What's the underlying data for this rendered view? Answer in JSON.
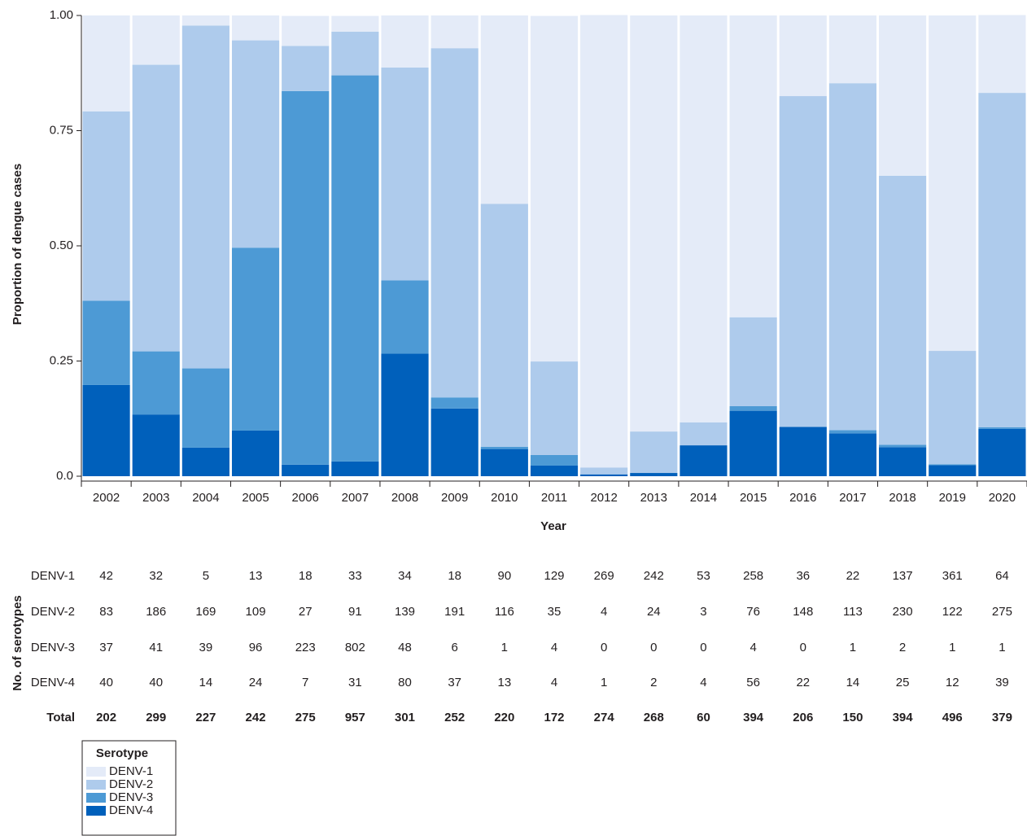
{
  "chart_data": {
    "type": "stacked_bar",
    "ylabel": "Proportion of dengue cases",
    "xlabel": "Year",
    "categories": [
      "2002",
      "2003",
      "2004",
      "2005",
      "2006",
      "2007",
      "2008",
      "2009",
      "2010",
      "2011",
      "2012",
      "2013",
      "2014",
      "2015",
      "2016",
      "2017",
      "2018",
      "2019",
      "2020"
    ],
    "series": [
      {
        "name": "DENV-1",
        "color": "#e4ebf8",
        "values": [
          0.208,
          0.107,
          0.022,
          0.054,
          0.065,
          0.034,
          0.113,
          0.071,
          0.409,
          0.75,
          0.982,
          0.903,
          0.883,
          0.655,
          0.175,
          0.147,
          0.348,
          0.728,
          0.169
        ]
      },
      {
        "name": "DENV-2",
        "color": "#aecbec",
        "values": [
          0.411,
          0.622,
          0.744,
          0.45,
          0.098,
          0.095,
          0.462,
          0.758,
          0.527,
          0.203,
          0.015,
          0.09,
          0.05,
          0.193,
          0.718,
          0.753,
          0.584,
          0.246,
          0.726
        ]
      },
      {
        "name": "DENV-3",
        "color": "#4d9ad5",
        "values": [
          0.183,
          0.137,
          0.172,
          0.397,
          0.811,
          0.838,
          0.159,
          0.024,
          0.005,
          0.023,
          0,
          0,
          0,
          0.01,
          0,
          0.007,
          0.005,
          0.002,
          0.003
        ]
      },
      {
        "name": "DENV-4",
        "color": "#0060bb",
        "values": [
          0.198,
          0.134,
          0.062,
          0.099,
          0.025,
          0.032,
          0.266,
          0.147,
          0.059,
          0.023,
          0.004,
          0.007,
          0.067,
          0.142,
          0.107,
          0.093,
          0.063,
          0.024,
          0.103
        ]
      }
    ],
    "stack_order": "bottom-up from last series",
    "ylim": [
      0,
      1
    ],
    "yticks": [
      {
        "value": 0,
        "label": "0.0"
      },
      0.25,
      {
        "value": 0.5,
        "label": "0.50"
      },
      0.75,
      {
        "value": 1,
        "label": "1.00"
      }
    ],
    "legend": {
      "title": "Serotype",
      "position": "bottom-left"
    }
  },
  "table": {
    "title": "No. of serotypes",
    "rows": [
      {
        "label": "DENV-1",
        "values": [
          42,
          32,
          5,
          13,
          18,
          33,
          34,
          18,
          90,
          129,
          269,
          242,
          53,
          258,
          36,
          22,
          137,
          361,
          64
        ]
      },
      {
        "label": "DENV-2",
        "values": [
          83,
          186,
          169,
          109,
          27,
          91,
          139,
          191,
          116,
          35,
          4,
          24,
          3,
          76,
          148,
          113,
          230,
          122,
          275
        ]
      },
      {
        "label": "DENV-3",
        "values": [
          37,
          41,
          39,
          96,
          223,
          802,
          48,
          6,
          1,
          4,
          0,
          0,
          0,
          4,
          0,
          1,
          2,
          1,
          1
        ]
      },
      {
        "label": "DENV-4",
        "values": [
          40,
          40,
          14,
          24,
          7,
          31,
          80,
          37,
          13,
          4,
          1,
          2,
          4,
          56,
          22,
          14,
          25,
          12,
          39
        ]
      },
      {
        "label": "Total",
        "values": [
          202,
          299,
          227,
          242,
          275,
          957,
          301,
          252,
          220,
          172,
          274,
          268,
          60,
          394,
          206,
          150,
          394,
          496,
          379
        ],
        "bold": true
      }
    ]
  }
}
